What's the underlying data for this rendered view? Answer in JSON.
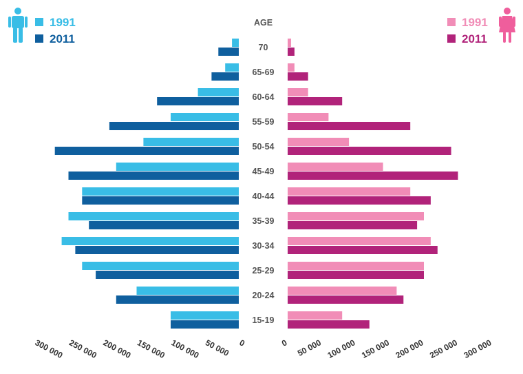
{
  "chart_data": {
    "type": "bar",
    "orientation": "horizontal",
    "layout": "population-pyramid",
    "center_header": "AGE",
    "categories": [
      "70",
      "65-69",
      "60-64",
      "55-59",
      "50-54",
      "45-49",
      "40-44",
      "35-39",
      "30-34",
      "25-29",
      "20-24",
      "15-19"
    ],
    "left_panel": {
      "icon": "male-figure-icon",
      "series": [
        {
          "name": "1991",
          "color": "#39bde6",
          "values": [
            10000,
            20000,
            60000,
            100000,
            140000,
            180000,
            230000,
            250000,
            260000,
            230000,
            150000,
            100000
          ]
        },
        {
          "name": "2011",
          "color": "#0f5f9e",
          "values": [
            30000,
            40000,
            120000,
            190000,
            270000,
            250000,
            230000,
            220000,
            240000,
            210000,
            180000,
            100000
          ]
        }
      ],
      "xlim": [
        300000,
        0
      ],
      "ticks": [
        "300 000",
        "250 000",
        "200 000",
        "150 000",
        "100 000",
        "50 000",
        "0"
      ]
    },
    "right_panel": {
      "icon": "female-figure-icon",
      "series": [
        {
          "name": "1991",
          "color": "#f18db7",
          "values": [
            5000,
            10000,
            30000,
            60000,
            90000,
            140000,
            180000,
            200000,
            210000,
            200000,
            160000,
            80000
          ]
        },
        {
          "name": "2011",
          "color": "#b1237a",
          "values": [
            10000,
            30000,
            80000,
            180000,
            240000,
            250000,
            210000,
            190000,
            220000,
            200000,
            170000,
            120000
          ]
        }
      ],
      "xlim": [
        0,
        300000
      ],
      "ticks": [
        "0",
        "50 000",
        "100 000",
        "150 000",
        "200 000",
        "250 000",
        "300 000"
      ]
    },
    "legend": "top-left and top-right",
    "grid": false
  }
}
